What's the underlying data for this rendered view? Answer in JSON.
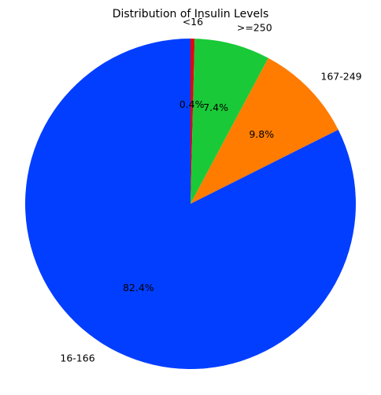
{
  "chart_data": {
    "type": "pie",
    "title": "Distribution of Insulin Levels",
    "start_angle_deg": 90,
    "direction": "clockwise",
    "slices": [
      {
        "label": "<16",
        "percent_label": "0.4%",
        "value": 0.4,
        "color": "#e8000b"
      },
      {
        "label": ">=250",
        "percent_label": "7.4%",
        "value": 7.4,
        "color": "#1ac938"
      },
      {
        "label": "167-249",
        "percent_label": "9.8%",
        "value": 9.8,
        "color": "#ff7c00"
      },
      {
        "label": "16-166",
        "percent_label": "82.4%",
        "value": 82.4,
        "color": "#023eff"
      }
    ]
  }
}
